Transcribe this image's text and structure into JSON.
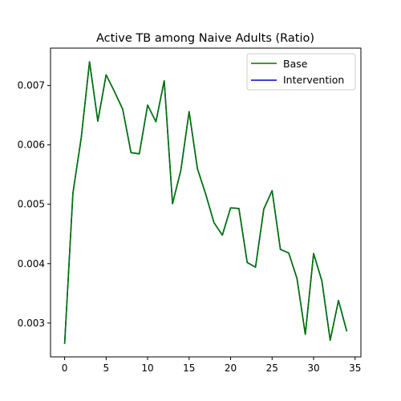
{
  "chart_data": {
    "type": "line",
    "title": "Active TB among Naive Adults (Ratio)",
    "xlabel": "",
    "ylabel": "",
    "xlim": [
      -1.7,
      35.7
    ],
    "ylim": [
      0.00243,
      0.00763
    ],
    "x_ticks": [
      0,
      5,
      10,
      15,
      20,
      25,
      30,
      35
    ],
    "x_tick_labels": [
      "0",
      "5",
      "10",
      "15",
      "20",
      "25",
      "30",
      "35"
    ],
    "y_ticks": [
      0.003,
      0.004,
      0.005,
      0.006,
      0.007
    ],
    "y_tick_labels": [
      "0.003",
      "0.004",
      "0.005",
      "0.006",
      "0.007"
    ],
    "x": [
      0,
      1,
      2,
      3,
      4,
      5,
      6,
      7,
      8,
      9,
      10,
      11,
      12,
      13,
      14,
      15,
      16,
      17,
      18,
      19,
      20,
      21,
      22,
      23,
      24,
      25,
      26,
      27,
      28,
      29,
      30,
      31,
      32,
      33,
      34
    ],
    "series": [
      {
        "name": "Intervention",
        "color": "#0000cc",
        "values": [
          0.00265,
          0.00519,
          0.00612,
          0.0074,
          0.0064,
          0.00718,
          0.0069,
          0.0066,
          0.00587,
          0.00585,
          0.00667,
          0.00639,
          0.00708,
          0.00501,
          0.00557,
          0.00656,
          0.0056,
          0.00517,
          0.00469,
          0.00448,
          0.00494,
          0.00493,
          0.00402,
          0.00394,
          0.00492,
          0.00523,
          0.00424,
          0.00418,
          0.00375,
          0.00281,
          0.00417,
          0.00371,
          0.00271,
          0.00338,
          0.00286
        ]
      },
      {
        "name": "Base",
        "color": "#007700",
        "values": [
          0.00265,
          0.00519,
          0.00612,
          0.0074,
          0.0064,
          0.00718,
          0.0069,
          0.0066,
          0.00587,
          0.00585,
          0.00667,
          0.00639,
          0.00708,
          0.00501,
          0.00557,
          0.00656,
          0.0056,
          0.00517,
          0.00469,
          0.00448,
          0.00494,
          0.00493,
          0.00402,
          0.00394,
          0.00492,
          0.00523,
          0.00424,
          0.00418,
          0.00375,
          0.00281,
          0.00417,
          0.00371,
          0.00271,
          0.00338,
          0.00286
        ]
      }
    ],
    "legend": {
      "placement": "upper-right",
      "entries": [
        {
          "label": "Base",
          "color": "#007700"
        },
        {
          "label": "Intervention",
          "color": "#0000cc"
        }
      ]
    },
    "grid": false
  }
}
